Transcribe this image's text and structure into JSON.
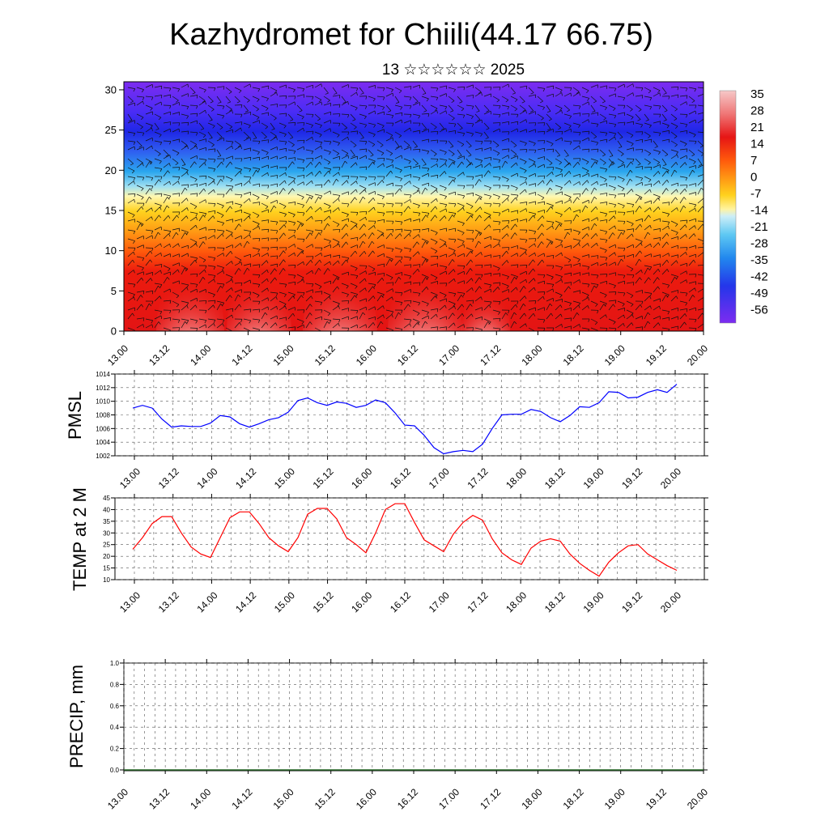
{
  "header": {
    "title": "Kazhydromet for Chiili(44.17 66.75)",
    "subtitle": "13 ☆☆☆☆☆☆ 2025"
  },
  "time_labels": [
    "13.00",
    "13.12",
    "14.00",
    "14.12",
    "15.00",
    "15.12",
    "16.00",
    "16.12",
    "17.00",
    "17.12",
    "18.00",
    "18.12",
    "19.00",
    "19.12",
    "20.00"
  ],
  "colorbar": {
    "labels": [
      "35",
      "28",
      "21",
      "14",
      "7",
      "0",
      "-7",
      "-14",
      "-21",
      "-28",
      "-35",
      "-42",
      "-49",
      "-56"
    ]
  },
  "chart_data": [
    {
      "type": "heatmap",
      "title": "",
      "description": "Vertical cross-section of temperature with wind barbs",
      "x_ticks": [
        "13.00",
        "13.12",
        "14.00",
        "14.12",
        "15.00",
        "15.12",
        "16.00",
        "16.12",
        "17.00",
        "17.12",
        "18.00",
        "18.12",
        "19.00",
        "19.12",
        "20.00"
      ],
      "y_ticks": [
        0,
        5,
        10,
        15,
        20,
        25,
        30
      ],
      "ylim": [
        0,
        31
      ],
      "color_scale_min": -56,
      "color_scale_max": 35
    },
    {
      "type": "line",
      "ylabel": "PMSL",
      "ylim": [
        1002,
        1014
      ],
      "y_ticks": [
        1002,
        1004,
        1006,
        1008,
        1010,
        1012,
        1014
      ],
      "x_ticks": [
        "13.00",
        "13.12",
        "14.00",
        "14.12",
        "15.00",
        "15.12",
        "16.00",
        "16.12",
        "17.00",
        "17.12",
        "18.00",
        "18.12",
        "19.00",
        "19.12",
        "20.00"
      ],
      "color": "#0000ff",
      "values": [
        1009.0,
        1009.4,
        1009.0,
        1007.4,
        1006.2,
        1006.4,
        1006.3,
        1006.3,
        1006.8,
        1007.9,
        1007.7,
        1006.7,
        1006.2,
        1006.7,
        1007.3,
        1007.6,
        1008.4,
        1010.1,
        1010.5,
        1009.8,
        1009.4,
        1009.9,
        1009.7,
        1009.1,
        1009.4,
        1010.2,
        1009.8,
        1008.3,
        1006.5,
        1006.4,
        1005.0,
        1003.2,
        1002.3,
        1002.6,
        1002.8,
        1002.6,
        1003.7,
        1006.0,
        1008.0,
        1008.1,
        1008.1,
        1008.8,
        1008.5,
        1007.6,
        1007.0,
        1007.9,
        1009.2,
        1009.1,
        1009.8,
        1011.4,
        1011.3,
        1010.5,
        1010.6,
        1011.3,
        1011.7,
        1011.3,
        1012.5
      ]
    },
    {
      "type": "line",
      "ylabel": "TEMP at 2 M",
      "ylim": [
        10,
        45
      ],
      "y_ticks": [
        10,
        15,
        20,
        25,
        30,
        35,
        40,
        45
      ],
      "x_ticks": [
        "13.00",
        "13.12",
        "14.00",
        "14.12",
        "15.00",
        "15.12",
        "16.00",
        "16.12",
        "17.00",
        "17.12",
        "18.00",
        "18.12",
        "19.00",
        "19.12",
        "20.00"
      ],
      "color": "#ff0000",
      "values": [
        23,
        28,
        34,
        37,
        37,
        30,
        24,
        21,
        19.5,
        28,
        36.5,
        39,
        39,
        34,
        28,
        24.5,
        22,
        28,
        38,
        40.5,
        40.5,
        36,
        28,
        25,
        21.5,
        30,
        40,
        42.5,
        42.5,
        34.5,
        27,
        24.5,
        22,
        29.5,
        34.5,
        37.5,
        35.5,
        27.5,
        21.5,
        18.5,
        16.5,
        23.5,
        26.5,
        27.5,
        26.5,
        21,
        17,
        14,
        11.5,
        17.5,
        21.5,
        24.5,
        25,
        21,
        18.5,
        16,
        14
      ]
    },
    {
      "type": "bar",
      "ylabel": "PRECIP, mm",
      "ylim": [
        0.0,
        1.0
      ],
      "y_ticks": [
        "0.0",
        "0.2",
        "0.4",
        "0.6",
        "0.8",
        "1.0"
      ],
      "x_ticks": [
        "13.00",
        "13.12",
        "14.00",
        "14.12",
        "15.00",
        "15.12",
        "16.00",
        "16.12",
        "17.00",
        "17.12",
        "18.00",
        "18.12",
        "19.00",
        "19.12",
        "20.00"
      ],
      "values": [
        0
      ]
    }
  ]
}
